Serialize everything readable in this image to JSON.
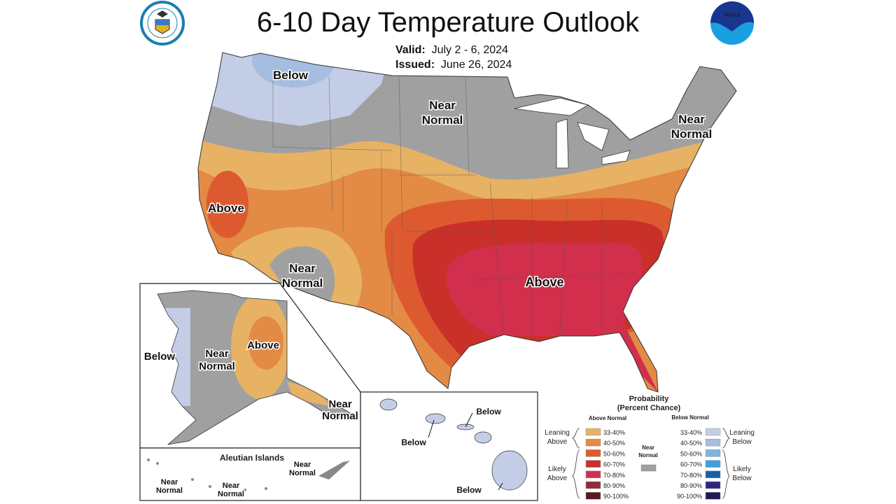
{
  "title": "6-10 Day Temperature Outlook",
  "valid_label": "Valid:",
  "valid": "July 2 - 6, 2024",
  "issued_label": "Issued:",
  "issued": "June 26, 2024",
  "logos": {
    "left": "U.S. Department of Commerce seal",
    "right": "NOAA"
  },
  "map_labels": {
    "nw_below": "Below",
    "north_near": [
      "Near",
      "Normal"
    ],
    "ne_near": [
      "Near",
      "Normal"
    ],
    "ca_above": "Above",
    "sw_near": [
      "Near",
      "Normal"
    ],
    "se_above": "Above",
    "ak_below": "Below",
    "ak_near": [
      "Near",
      "Normal"
    ],
    "ak_above": "Above",
    "ak_se_near": [
      "Near",
      "Normal"
    ],
    "aleutian_title": "Aleutian Islands",
    "aleutian_near_1": [
      "Near",
      "Normal"
    ],
    "aleutian_near_2": [
      "Near",
      "Normal"
    ],
    "aleutian_near_3": [
      "Near",
      "Normal"
    ],
    "hi_below_1": "Below",
    "hi_below_2": "Below",
    "hi_below_3": "Below"
  },
  "legend": {
    "title": "Probability",
    "subtitle": "(Percent Chance)",
    "above_header": "Above Normal",
    "below_header": "Below Normal",
    "near_label": [
      "Near",
      "Normal"
    ],
    "near_color": "#a0a0a0",
    "leaning_above": [
      "Leaning",
      "Above"
    ],
    "likely_above": [
      "Likely",
      "Above"
    ],
    "leaning_below": [
      "Leaning",
      "Below"
    ],
    "likely_below": [
      "Likely",
      "Below"
    ],
    "above": [
      {
        "range": "33-40%",
        "color": "#e8b264"
      },
      {
        "range": "40-50%",
        "color": "#e38a45"
      },
      {
        "range": "50-60%",
        "color": "#dd5a30"
      },
      {
        "range": "60-70%",
        "color": "#c9302a"
      },
      {
        "range": "70-80%",
        "color": "#d12f4c"
      },
      {
        "range": "80-90%",
        "color": "#8e2c35"
      },
      {
        "range": "90-100%",
        "color": "#5a1a22"
      }
    ],
    "below": [
      {
        "range": "33-40%",
        "color": "#c3cde6"
      },
      {
        "range": "40-50%",
        "color": "#a4bde0"
      },
      {
        "range": "50-60%",
        "color": "#7fb4e0"
      },
      {
        "range": "60-70%",
        "color": "#3d9fe0"
      },
      {
        "range": "70-80%",
        "color": "#1660a8"
      },
      {
        "range": "80-90%",
        "color": "#2e2480"
      },
      {
        "range": "90-100%",
        "color": "#201a55"
      }
    ]
  }
}
